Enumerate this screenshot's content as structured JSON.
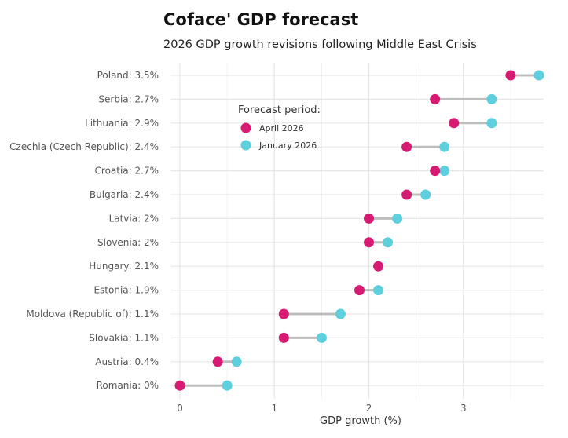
{
  "chart_data": {
    "type": "dumbbell",
    "title": "Coface' GDP forecast",
    "subtitle": "2026 GDP growth revisions following Middle East Crisis",
    "xlabel": "GDP growth (%)",
    "ylabel": "",
    "xlim": [
      -0.1,
      3.85
    ],
    "xticks": [
      0,
      1,
      2,
      3
    ],
    "grid": true,
    "legend": {
      "title": "Forecast period:",
      "placement": "upper-middle",
      "entries": [
        {
          "name": "April 2026",
          "color": "#d81b72"
        },
        {
          "name": "January 2026",
          "color": "#5ecfdc"
        }
      ]
    },
    "categories": [
      "Poland: 3.5%",
      "Serbia: 2.7%",
      "Lithuania: 2.9%",
      "Czechia (Czech Republic): 2.4%",
      "Croatia: 2.7%",
      "Bulgaria: 2.4%",
      "Latvia: 2%",
      "Slovenia: 2%",
      "Hungary: 2.1%",
      "Estonia: 1.9%",
      "Moldova (Republic of): 1.1%",
      "Slovakia: 1.1%",
      "Austria: 0.4%",
      "Romania: 0%"
    ],
    "series": [
      {
        "name": "April 2026",
        "color": "#d81b72",
        "values": [
          3.5,
          2.7,
          2.9,
          2.4,
          2.7,
          2.4,
          2.0,
          2.0,
          2.1,
          1.9,
          1.1,
          1.1,
          0.4,
          0.0
        ]
      },
      {
        "name": "January 2026",
        "color": "#5ecfdc",
        "values": [
          3.8,
          3.3,
          3.3,
          2.8,
          2.8,
          2.6,
          2.3,
          2.2,
          2.1,
          2.1,
          1.7,
          1.5,
          0.6,
          0.5
        ]
      }
    ]
  }
}
